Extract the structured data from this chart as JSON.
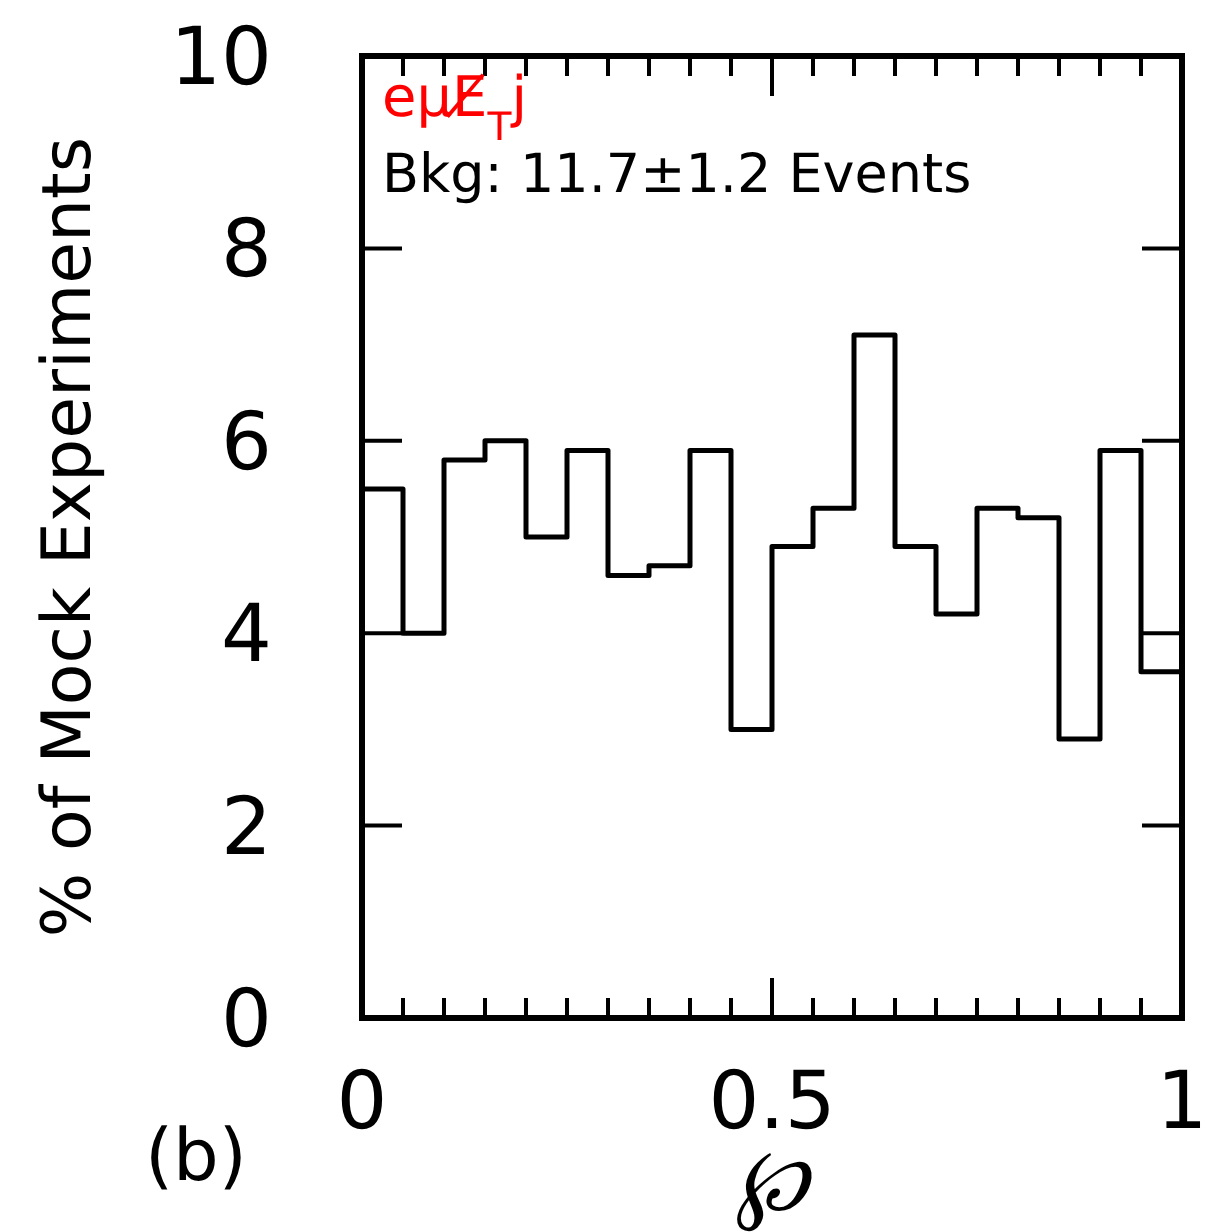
{
  "chart_data": {
    "type": "histogram",
    "xlabel": "℘",
    "ylabel": "% of Mock Experiments",
    "bins": [
      0,
      0.05,
      0.1,
      0.15,
      0.2,
      0.25,
      0.3,
      0.35,
      0.4,
      0.45,
      0.5,
      0.55,
      0.6,
      0.65,
      0.7,
      0.75,
      0.8,
      0.85,
      0.9,
      0.95,
      1
    ],
    "values": [
      5.5,
      4.0,
      5.8,
      6.0,
      5.0,
      5.9,
      4.6,
      4.7,
      5.9,
      3.0,
      4.9,
      5.3,
      7.1,
      4.9,
      4.2,
      5.3,
      5.2,
      2.9,
      5.9,
      3.6
    ],
    "color": "#000000",
    "xlim": [
      0,
      1
    ],
    "ylim": [
      0,
      10
    ],
    "xticks": [
      0,
      {
        "value": 0.05,
        "label": null
      },
      {
        "value": 0.1,
        "label": null
      },
      {
        "value": 0.15,
        "label": null
      },
      {
        "value": 0.2,
        "label": null
      },
      {
        "value": 0.25,
        "label": null
      },
      {
        "value": 0.3,
        "label": null
      },
      {
        "value": 0.35,
        "label": null
      },
      {
        "value": 0.4,
        "label": null
      },
      {
        "value": 0.45,
        "label": null
      },
      0.5,
      {
        "value": 0.55,
        "label": null
      },
      {
        "value": 0.6,
        "label": null
      },
      {
        "value": 0.65,
        "label": null
      },
      {
        "value": 0.7,
        "label": null
      },
      {
        "value": 0.75,
        "label": null
      },
      {
        "value": 0.8,
        "label": null
      },
      {
        "value": 0.85,
        "label": null
      },
      {
        "value": 0.9,
        "label": null
      },
      {
        "value": 0.95,
        "label": null
      },
      1
    ],
    "yticks": [
      0,
      2,
      4,
      6,
      8,
      10
    ],
    "annotations": [
      "eμE̸$_{T}$j",
      "Bkg: 11.7±1.2 Events",
      "(b)"
    ],
    "grid": false
  }
}
